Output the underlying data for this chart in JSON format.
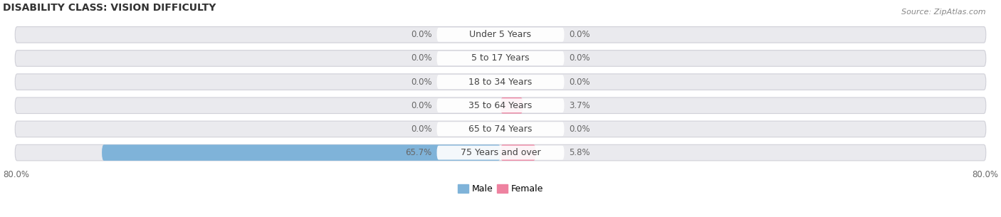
{
  "title": "DISABILITY CLASS: VISION DIFFICULTY",
  "source": "Source: ZipAtlas.com",
  "categories": [
    "Under 5 Years",
    "5 to 17 Years",
    "18 to 34 Years",
    "35 to 64 Years",
    "65 to 74 Years",
    "75 Years and over"
  ],
  "male_values": [
    0.0,
    0.0,
    0.0,
    0.0,
    0.0,
    65.7
  ],
  "female_values": [
    0.0,
    0.0,
    0.0,
    3.7,
    0.0,
    5.8
  ],
  "male_labels": [
    "0.0%",
    "0.0%",
    "0.0%",
    "0.0%",
    "0.0%",
    "65.7%"
  ],
  "female_labels": [
    "0.0%",
    "0.0%",
    "0.0%",
    "3.7%",
    "0.0%",
    "5.8%"
  ],
  "male_color": "#7fb3d9",
  "female_color": "#f4a0b8",
  "female_color_vivid": "#ee82a0",
  "bar_bg_color": "#eaeaee",
  "bar_bg_edge_color": "#d0d0d8",
  "axis_max": 80.0,
  "axis_label_left": "80.0%",
  "axis_label_right": "80.0%",
  "legend_male": "Male",
  "legend_female": "Female",
  "title_fontsize": 10,
  "source_fontsize": 8,
  "label_fontsize": 8.5,
  "category_fontsize": 9,
  "min_bar_display": 2.0
}
